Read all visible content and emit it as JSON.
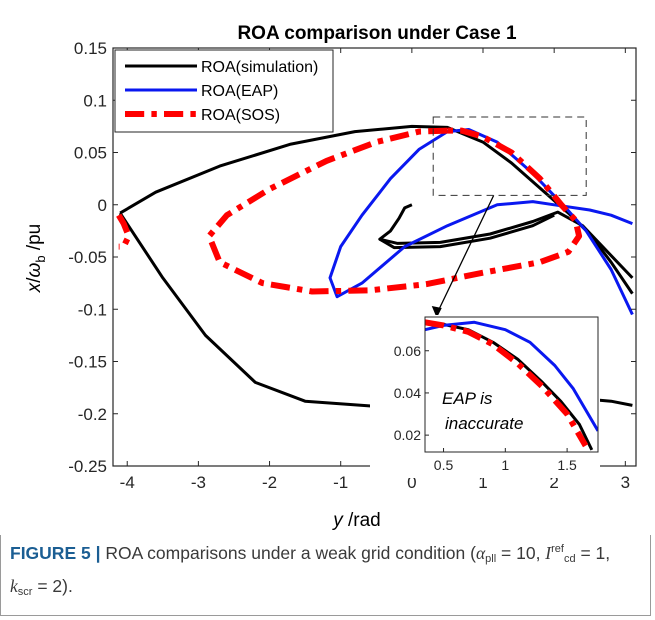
{
  "chart_data": {
    "type": "line",
    "title": "ROA comparison under Case 1",
    "xlabel": "y /rad",
    "ylabel": "x/ωb /pu",
    "xlim": [
      -4.2,
      3.15
    ],
    "ylim": [
      -0.25,
      0.15
    ],
    "xticks": [
      "-4",
      "-3",
      "-2",
      "-1",
      "0",
      "1",
      "2",
      "3"
    ],
    "yticks": [
      "0.15",
      "0.1",
      "0.05",
      "0",
      "-0.05",
      "-0.1",
      "-0.15",
      "-0.2",
      "-0.25"
    ],
    "legend_position": "top-left",
    "series": [
      {
        "name": "ROA(simulation)",
        "color": "#000000",
        "style": "solid",
        "segments": [
          [
            [
              -4.1,
              -0.008
            ],
            [
              -3.6,
              0.012
            ],
            [
              -2.7,
              0.037
            ],
            [
              -1.7,
              0.058
            ],
            [
              -0.8,
              0.07
            ],
            [
              0.0,
              0.075
            ],
            [
              0.5,
              0.074
            ],
            [
              1.0,
              0.06
            ],
            [
              1.4,
              0.04
            ],
            [
              1.7,
              0.022
            ],
            [
              2.0,
              0.004
            ],
            [
              2.2,
              -0.008
            ],
            [
              2.5,
              -0.028
            ],
            [
              2.8,
              -0.055
            ],
            [
              3.1,
              -0.085
            ]
          ],
          [
            [
              -4.1,
              -0.008
            ],
            [
              -3.5,
              -0.07
            ],
            [
              -2.9,
              -0.125
            ],
            [
              -2.2,
              -0.17
            ],
            [
              -1.5,
              -0.188
            ],
            [
              -0.5,
              -0.193
            ],
            [
              0.5,
              -0.193
            ],
            [
              1.5,
              -0.188
            ],
            [
              2.3,
              -0.185
            ],
            [
              2.8,
              -0.188
            ],
            [
              3.1,
              -0.192
            ]
          ],
          [
            [
              0.0,
              0.0
            ],
            [
              -0.1,
              -0.003
            ],
            [
              -0.18,
              -0.013
            ],
            [
              -0.3,
              -0.025
            ],
            [
              -0.45,
              -0.033
            ],
            [
              -0.2,
              -0.037
            ],
            [
              0.4,
              -0.036
            ],
            [
              1.1,
              -0.028
            ],
            [
              1.7,
              -0.016
            ],
            [
              2.05,
              -0.007
            ],
            [
              2.4,
              -0.02
            ],
            [
              2.75,
              -0.045
            ],
            [
              3.1,
              -0.07
            ]
          ],
          [
            [
              -0.45,
              -0.033
            ],
            [
              -0.25,
              -0.041
            ],
            [
              0.4,
              -0.04
            ],
            [
              1.1,
              -0.032
            ],
            [
              1.7,
              -0.02
            ],
            [
              2.0,
              -0.01
            ]
          ]
        ]
      },
      {
        "name": "ROA(EAP)",
        "color": "#0a18f0",
        "style": "solid",
        "segments": [
          [
            [
              3.1,
              -0.105
            ],
            [
              2.8,
              -0.062
            ],
            [
              2.45,
              -0.025
            ],
            [
              2.15,
              -0.002
            ],
            [
              1.7,
              0.03
            ],
            [
              1.2,
              0.06
            ],
            [
              0.8,
              0.072
            ],
            [
              0.5,
              0.07
            ],
            [
              0.1,
              0.053
            ],
            [
              -0.3,
              0.025
            ],
            [
              -0.7,
              -0.01
            ],
            [
              -1.0,
              -0.04
            ],
            [
              -1.15,
              -0.07
            ],
            [
              -1.05,
              -0.088
            ],
            [
              -0.7,
              -0.075
            ],
            [
              -0.1,
              -0.04
            ],
            [
              0.5,
              -0.02
            ],
            [
              1.2,
              0.0
            ],
            [
              1.7,
              0.003
            ],
            [
              2.0,
              0.0
            ],
            [
              2.5,
              -0.005
            ],
            [
              2.8,
              -0.01
            ],
            [
              3.1,
              -0.018
            ]
          ]
        ]
      },
      {
        "name": "ROA(SOS)",
        "color": "#ff0000",
        "style": "dashdot",
        "segments": [
          [
            [
              -4.12,
              -0.01
            ],
            [
              -4.05,
              -0.018
            ],
            [
              -3.98,
              -0.03
            ],
            [
              -4.05,
              -0.04
            ],
            [
              -4.12,
              -0.04
            ]
          ],
          [
            [
              0.5,
              0.071
            ],
            [
              0.1,
              0.07
            ],
            [
              -0.5,
              0.06
            ],
            [
              -1.2,
              0.042
            ],
            [
              -2.0,
              0.015
            ],
            [
              -2.6,
              -0.01
            ],
            [
              -2.85,
              -0.03
            ],
            [
              -2.7,
              -0.055
            ],
            [
              -2.1,
              -0.075
            ],
            [
              -1.4,
              -0.083
            ],
            [
              -0.6,
              -0.082
            ],
            [
              0.2,
              -0.076
            ],
            [
              1.0,
              -0.065
            ],
            [
              1.8,
              -0.055
            ],
            [
              2.2,
              -0.045
            ],
            [
              2.35,
              -0.03
            ],
            [
              2.3,
              -0.015
            ],
            [
              2.1,
              0.0
            ],
            [
              1.8,
              0.025
            ],
            [
              1.4,
              0.05
            ],
            [
              1.0,
              0.065
            ],
            [
              0.7,
              0.071
            ],
            [
              0.5,
              0.071
            ]
          ]
        ]
      }
    ],
    "inset": {
      "xlim": [
        0.35,
        1.75
      ],
      "ylim": [
        0.012,
        0.076
      ],
      "xticks": [
        "0.5",
        "1",
        "1.5"
      ],
      "yticks": [
        "0.06",
        "0.04",
        "0.02"
      ],
      "annotation": [
        "EAP is",
        "inaccurate"
      ],
      "series": [
        {
          "name": "ROA(simulation)",
          "color": "#000000",
          "style": "solid",
          "points": [
            [
              0.35,
              0.073
            ],
            [
              0.5,
              0.0725
            ],
            [
              0.7,
              0.07
            ],
            [
              0.9,
              0.064
            ],
            [
              1.1,
              0.056
            ],
            [
              1.3,
              0.045
            ],
            [
              1.45,
              0.036
            ],
            [
              1.6,
              0.025
            ],
            [
              1.7,
              0.013
            ]
          ]
        },
        {
          "name": "ROA(EAP)",
          "color": "#0a18f0",
          "style": "solid",
          "points": [
            [
              0.35,
              0.07
            ],
            [
              0.5,
              0.072
            ],
            [
              0.75,
              0.0735
            ],
            [
              1.0,
              0.07
            ],
            [
              1.2,
              0.064
            ],
            [
              1.4,
              0.053
            ],
            [
              1.55,
              0.042
            ],
            [
              1.75,
              0.022
            ]
          ]
        },
        {
          "name": "ROA(SOS)",
          "color": "#ff0000",
          "style": "dashdot",
          "points": [
            [
              0.35,
              0.0735
            ],
            [
              0.5,
              0.072
            ],
            [
              0.7,
              0.069
            ],
            [
              0.9,
              0.063
            ],
            [
              1.1,
              0.054
            ],
            [
              1.3,
              0.043
            ],
            [
              1.5,
              0.03
            ],
            [
              1.65,
              0.015
            ]
          ]
        }
      ]
    }
  },
  "caption": {
    "label": "FIGURE 5 |",
    "text": "ROA comparisons under a weak grid condition (",
    "alpha": "α",
    "alpha_sub": "pll",
    "eq1": " = 10, ",
    "i": "I",
    "i_sup": "ref",
    "i_sub": "cd",
    "eq2": " = 1,",
    "k": "k",
    "k_sub": "scr",
    "eq3": " = 2)."
  }
}
